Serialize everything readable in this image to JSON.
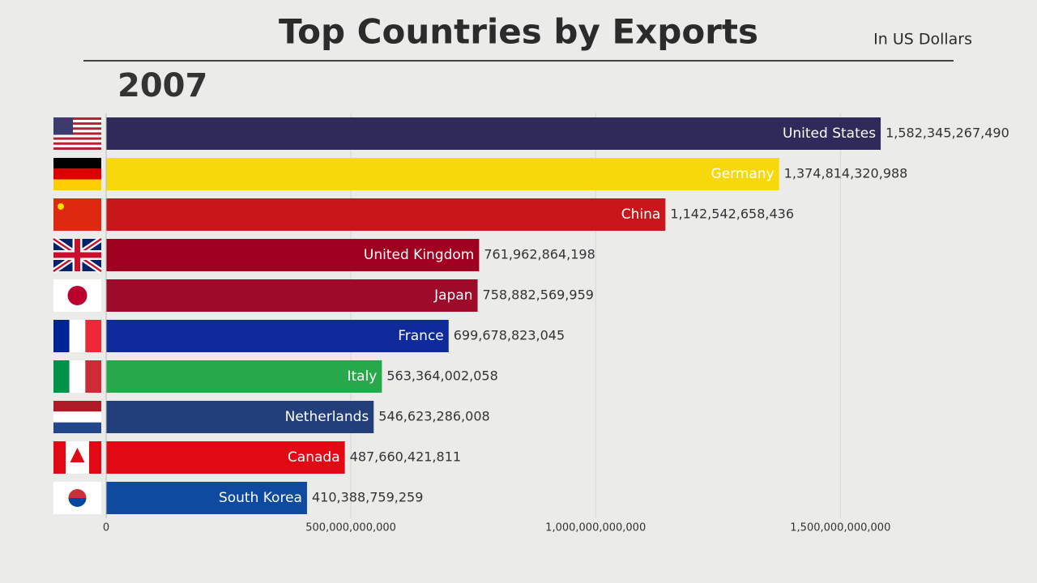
{
  "chart_data": {
    "type": "bar",
    "orientation": "horizontal",
    "title": "Top Countries by Exports",
    "subtitle": "In US Dollars",
    "annotation": "2007",
    "categories": [
      "United States",
      "Germany",
      "China",
      "United Kingdom",
      "Japan",
      "France",
      "Italy",
      "Netherlands",
      "Canada",
      "South Korea"
    ],
    "values": [
      1582345267490,
      1374814320988,
      1142542658436,
      761962864198,
      758882569959,
      699678823045,
      563364002058,
      546623286008,
      487660421811,
      410388759259
    ],
    "value_labels": [
      "1,582,345,267,490",
      "1,374,814,320,988",
      "1,142,542,658,436",
      "761,962,864,198",
      "758,882,569,959",
      "699,678,823,045",
      "563,364,002,058",
      "546,623,286,008",
      "487,660,421,811",
      "410,388,759,259"
    ],
    "colors": [
      "#2e2a5a",
      "#f7d80a",
      "#c8161b",
      "#a0001f",
      "#9e0b2a",
      "#0f2a9a",
      "#27a84a",
      "#233f7a",
      "#e10a14",
      "#0d4aa0"
    ],
    "xlim": [
      0,
      1900000000000
    ],
    "xticks": [
      0,
      {
        "value": 500000000000,
        "label": "500,000,000,000"
      },
      {
        "value": 1000000000000,
        "label": "1,000,000,000,000"
      },
      {
        "value": 1500000000000,
        "label": "1,500,000,000,000"
      }
    ],
    "grid": true
  }
}
